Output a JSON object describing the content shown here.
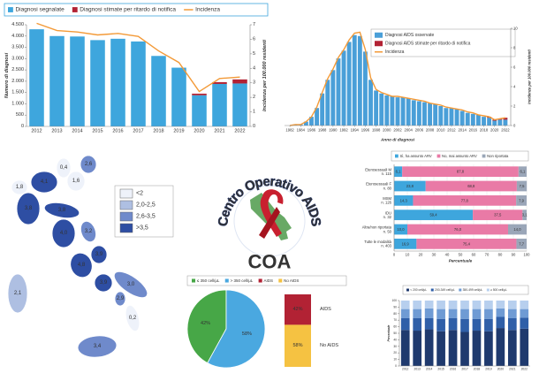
{
  "chart_data": [
    {
      "type": "bar",
      "categories": [
        "2012",
        "2013",
        "2014",
        "2015",
        "2016",
        "2017",
        "2018",
        "2019",
        "2020",
        "2021",
        "2022"
      ],
      "series": [
        {
          "name": "Diagnosi segnalate",
          "color": "#3ea6dd",
          "values": [
            4300,
            4000,
            3980,
            3820,
            3880,
            3760,
            3120,
            2600,
            1380,
            1880,
            1900
          ]
        },
        {
          "name": "Diagnosi stimate per ritardo di notifica",
          "color": "#b22234",
          "values": [
            null,
            null,
            null,
            null,
            null,
            null,
            null,
            null,
            70,
            80,
            180
          ]
        },
        {
          "name": "Incidenza",
          "type": "line",
          "axis": "y2",
          "color": "#f39a38",
          "values": [
            7.1,
            6.6,
            6.5,
            6.3,
            6.4,
            6.2,
            5.2,
            4.4,
            2.4,
            3.3,
            3.4
          ]
        }
      ],
      "ylabel": "Numero di diagnosi",
      "y2label": "Incidenza per 100.000 residenti",
      "ylim": [
        0,
        4500
      ],
      "yticks": [
        0,
        500,
        {
          "value": 1000,
          "label": "1.000"
        },
        {
          "value": 1500,
          "label": "1.500"
        },
        {
          "value": 2000,
          "label": "2.000"
        },
        {
          "value": 2500,
          "label": "2.500"
        },
        {
          "value": 3000,
          "label": "3.000"
        },
        {
          "value": 3500,
          "label": "3.500"
        },
        {
          "value": 4000,
          "label": "4.000"
        },
        {
          "value": 4500,
          "label": "4.500"
        }
      ],
      "y2lim": [
        0,
        7
      ],
      "y2ticks": [
        0,
        1,
        2,
        3,
        4,
        5,
        6,
        7
      ],
      "legend": "top"
    },
    {
      "type": "bar",
      "x": [
        1982,
        1983,
        1984,
        1985,
        1986,
        1987,
        1988,
        1989,
        1990,
        1991,
        1992,
        1993,
        1994,
        1995,
        1996,
        1997,
        1998,
        1999,
        2000,
        2001,
        2002,
        2003,
        2004,
        2005,
        2006,
        2007,
        2008,
        2009,
        2010,
        2011,
        2012,
        2013,
        2014,
        2015,
        2016,
        2017,
        2018,
        2019,
        2020,
        2021,
        2022
      ],
      "xlim": [
        1981,
        2023
      ],
      "xticks": [
        1982,
        1984,
        1986,
        1988,
        1990,
        1992,
        1994,
        1996,
        1998,
        2000,
        2002,
        2004,
        2006,
        2008,
        2010,
        2012,
        2014,
        2016,
        2018,
        2020,
        2022
      ],
      "series": [
        {
          "name": "Diagnosi AIDS osservate",
          "axis": "y2",
          "color": "#4a9fd8",
          "values": [
            0.0,
            0.1,
            0.1,
            0.4,
            0.9,
            1.8,
            3.3,
            4.7,
            5.7,
            6.9,
            7.7,
            8.6,
            9.3,
            9.2,
            7.6,
            4.7,
            3.6,
            3.3,
            3.1,
            3.0,
            2.9,
            2.9,
            2.8,
            2.6,
            2.5,
            2.4,
            2.3,
            2.2,
            2.0,
            1.8,
            1.8,
            1.7,
            1.5,
            1.3,
            1.2,
            1.1,
            0.9,
            0.8,
            0.5,
            0.6,
            0.6
          ]
        },
        {
          "name": "Diagnosi AIDS stimate per ritardo di notifica",
          "axis": "y2",
          "color": "#b22234",
          "values": [
            null,
            null,
            null,
            null,
            null,
            null,
            null,
            null,
            null,
            null,
            null,
            null,
            null,
            null,
            null,
            null,
            null,
            null,
            null,
            null,
            null,
            null,
            null,
            null,
            null,
            null,
            null,
            null,
            null,
            null,
            null,
            null,
            null,
            null,
            null,
            null,
            null,
            0.1,
            0.1,
            0.1,
            0.2
          ]
        },
        {
          "name": "Incidenza",
          "type": "line",
          "axis": "y2",
          "color": "#f39a38",
          "values": [
            0.0,
            0.1,
            0.1,
            0.4,
            0.9,
            1.9,
            3.4,
            4.8,
            5.8,
            7.0,
            7.8,
            8.8,
            9.5,
            9.6,
            7.8,
            4.9,
            3.7,
            3.4,
            3.2,
            3.0,
            3.0,
            2.9,
            2.8,
            2.7,
            2.6,
            2.5,
            2.3,
            2.2,
            2.1,
            1.9,
            1.8,
            1.7,
            1.6,
            1.4,
            1.3,
            1.1,
            1.0,
            0.9,
            0.6,
            0.7,
            0.8
          ]
        }
      ],
      "xlabel": "Anno di diagnosi",
      "y2label": "Incidenza per 100.000 residenti",
      "y2lim": [
        0,
        10
      ],
      "y2ticks": [
        0,
        2,
        4,
        6,
        8,
        10
      ],
      "legend": "top-right"
    },
    {
      "type": "map",
      "values": [
        1.8,
        4.1,
        0.4,
        2.6,
        1.6,
        3.8,
        3.8,
        4.0,
        3.2,
        3.9,
        4.8,
        3.9,
        3.0,
        2.9,
        0.2,
        2.1,
        3.4
      ],
      "value_labels": [
        "1,8",
        "4,1",
        "0,4",
        "2,6",
        "1,6",
        "3,8",
        "3,8",
        "4,0",
        "3,2",
        "3,9",
        "4,8",
        "3,9",
        "3,0",
        "2,9",
        "0,2",
        "2,1",
        "3,4"
      ],
      "classes": [
        {
          "label": "<2",
          "color": "#eef2fa",
          "max": 2
        },
        {
          "label": "2,0-2,5",
          "color": "#aebfe2",
          "max": 2.5
        },
        {
          "label": "2,6-3,5",
          "color": "#6f8acb",
          "max": 3.5
        },
        {
          "label": ">3,5",
          "color": "#2e4ea3"
        }
      ]
    },
    {
      "type": "barh",
      "categories": [
        [
          "Eterosessuali M",
          "n. 115"
        ],
        [
          "Eterosessuali F",
          "n. 80"
        ],
        [
          "MSM",
          "n. 126"
        ],
        [
          "IDU",
          "n. 32"
        ],
        [
          "Altra/non riportata",
          "n. 50"
        ],
        [
          "Tutte le modalità",
          "n. 403"
        ]
      ],
      "series": [
        {
          "name": "Sì, ha assunto ARV",
          "color": "#3ea6dd",
          "values": [
            6.1,
            23.8,
            14.3,
            59.4,
            10.0,
            16.9
          ],
          "value_labels": [
            "6,1",
            "23,8",
            "14,3",
            "59,4",
            "10,0",
            "16,9"
          ]
        },
        {
          "name": "No, mai assunto ARV",
          "color": "#e97aa6",
          "values": [
            87.8,
            68.8,
            77.8,
            37.5,
            76.0,
            75.4
          ],
          "value_labels": [
            "87,8",
            "68,8",
            "77,8",
            "37,5",
            "76,0",
            "75,4"
          ]
        },
        {
          "name": "Non riportata",
          "color": "#9aa6b8",
          "values": [
            6.1,
            7.5,
            7.9,
            3.1,
            14.0,
            7.7
          ],
          "value_labels": [
            "6,1",
            "7,5",
            "7,9",
            "3,1",
            "14,0",
            "7,7"
          ]
        }
      ],
      "xlabel": "Percentuale",
      "xlim": [
        0,
        100
      ],
      "xticks": [
        0,
        10,
        20,
        30,
        40,
        50,
        60,
        70,
        80,
        90,
        100
      ],
      "grid": true,
      "legend": "top"
    },
    {
      "type": "pie",
      "categories": [
        "≤ 350 cell/μL",
        "> 350 cell/μL"
      ],
      "values": [
        42,
        58
      ],
      "value_labels": [
        "42%",
        "58%"
      ],
      "colors": [
        "#47a747",
        "#4aa8e0"
      ]
    },
    {
      "type": "splitbar",
      "categories": [
        "AIDS",
        "No AIDS"
      ],
      "values": [
        42,
        58
      ],
      "value_labels": [
        "42%",
        "58%"
      ],
      "colors": [
        "#b22234",
        "#f5c242"
      ]
    },
    {
      "type": "bar",
      "categories": [
        "2012",
        "2013",
        "2014",
        "2015",
        "2016",
        "2017",
        "2018",
        "2019",
        "2020",
        "2021",
        "2022"
      ],
      "series": [
        {
          "name": "< 200 cell/μL",
          "color": "#1f3a6e",
          "values": [
            55,
            54,
            56,
            53,
            55,
            52,
            54,
            53,
            58,
            55,
            57
          ]
        },
        {
          "name": "200-349 cell/μL",
          "color": "#2f5fa8",
          "values": [
            18,
            19,
            17,
            19,
            18,
            20,
            18,
            19,
            17,
            18,
            17
          ]
        },
        {
          "name": "350-499 cell/μL",
          "color": "#6f9bd4",
          "values": [
            14,
            14,
            15,
            15,
            14,
            15,
            15,
            15,
            13,
            14,
            13
          ]
        },
        {
          "name": "≥ 500 cell/μL",
          "color": "#b7cfee",
          "values": [
            13,
            13,
            12,
            13,
            13,
            13,
            13,
            13,
            12,
            13,
            13
          ]
        }
      ],
      "ylabel": "Percentuale",
      "ylim": [
        0,
        100
      ],
      "yticks": [
        0,
        10,
        20,
        30,
        40,
        50,
        60,
        70,
        80,
        90,
        100
      ],
      "legend": "top"
    }
  ],
  "logo": {
    "ring_text": "Centro Operativo AIDS",
    "acronym": "COA"
  }
}
